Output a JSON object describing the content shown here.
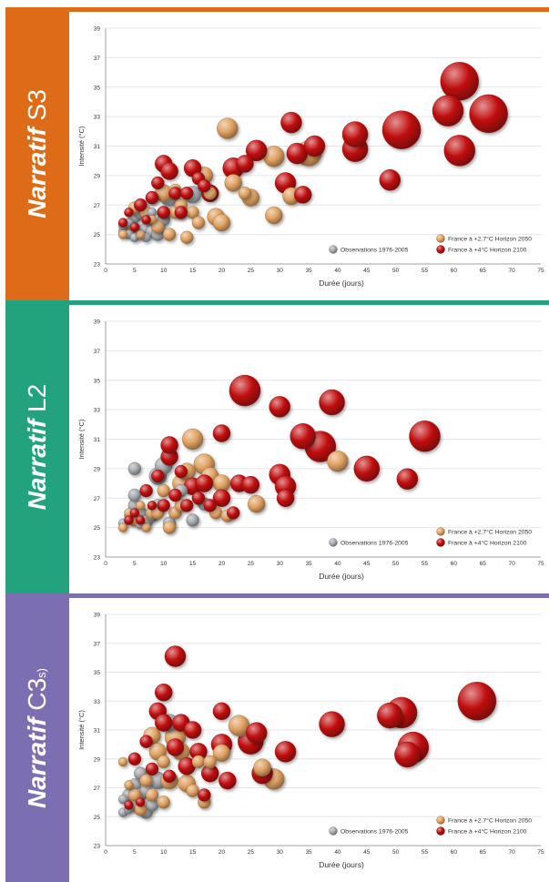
{
  "colors": {
    "s3": "#de6b17",
    "l2": "#23a37d",
    "c3": "#7b6fb1",
    "orange_bubble": "#e0a262",
    "red_bubble": "#c10f10",
    "grey_bubble": "#a5aab0"
  },
  "panels": [
    {
      "id": "s3",
      "prefix": "Narratif",
      "code": "S3",
      "suffix": ""
    },
    {
      "id": "l2",
      "prefix": "Narratif",
      "code": "L2",
      "suffix": ""
    },
    {
      "id": "c3",
      "prefix": "Narratif",
      "code": "C3",
      "suffix": "s)"
    }
  ],
  "chart_data": [
    {
      "type": "scatter",
      "xlabel": "Durée  (jours)",
      "ylabel": "Intensité  (°C)",
      "xlim": [
        0,
        75
      ],
      "ylim": [
        23,
        39
      ],
      "xticks": [
        0,
        5,
        10,
        15,
        20,
        25,
        30,
        35,
        40,
        45,
        50,
        55,
        60,
        65,
        70,
        75
      ],
      "yticks": [
        23,
        25,
        27,
        29,
        31,
        33,
        35,
        37,
        39
      ],
      "legend": "bottom-right",
      "series": [
        {
          "name": "Observations 1976-2005",
          "color": "#a5aab0",
          "x": [
            3,
            3,
            4,
            4,
            5,
            5,
            5,
            6,
            6,
            6,
            7,
            7,
            7,
            8,
            8,
            9,
            9,
            10,
            11,
            13,
            15
          ],
          "y": [
            25.2,
            25.6,
            25.0,
            25.8,
            24.8,
            26.2,
            25.4,
            26.5,
            25.0,
            27.0,
            25.4,
            26.0,
            24.8,
            25.2,
            26.5,
            25.0,
            25.6,
            26.0,
            27.5,
            26.5,
            27.7
          ],
          "d": [
            1,
            1,
            1,
            1,
            1,
            2,
            2,
            2,
            1,
            2,
            2,
            1,
            1,
            2,
            1,
            2,
            2,
            2,
            3,
            2,
            3
          ]
        },
        {
          "name": "France à +2.7°C Horizon 2050",
          "color": "#e0a262",
          "x": [
            3,
            4,
            5,
            6,
            7,
            8,
            8,
            9,
            10,
            10,
            11,
            12,
            12,
            13,
            14,
            15,
            16,
            17,
            18,
            19,
            20,
            21,
            22,
            24,
            25,
            29,
            29,
            32,
            35
          ],
          "y": [
            25.0,
            25.5,
            26.8,
            25.0,
            26.5,
            26.0,
            27.5,
            25.5,
            26.5,
            27.8,
            25.0,
            26.5,
            28.0,
            27.0,
            24.8,
            26.5,
            25.8,
            29.0,
            27.8,
            26.2,
            25.8,
            32.2,
            28.5,
            27.8,
            27.5,
            30.3,
            26.3,
            27.6,
            30.5
          ],
          "d": [
            1,
            2,
            2,
            1,
            2,
            1,
            2,
            2,
            2,
            3,
            2,
            2,
            2,
            2,
            2,
            2,
            2,
            3,
            2,
            3,
            3,
            4,
            3,
            2,
            3,
            4,
            3,
            3,
            5
          ]
        },
        {
          "name": "France à +4°C Horizon 2100",
          "color": "#c10f10",
          "x": [
            3,
            4,
            5,
            6,
            7,
            8,
            9,
            10,
            10,
            11,
            12,
            13,
            14,
            15,
            16,
            17,
            18,
            22,
            24,
            26,
            31,
            32,
            33,
            34,
            36,
            43,
            43,
            49,
            51,
            59,
            61,
            61,
            66
          ],
          "y": [
            25.8,
            26.5,
            25.5,
            27.0,
            26.0,
            27.5,
            28.5,
            26.5,
            29.8,
            29.3,
            27.8,
            26.5,
            27.8,
            29.5,
            28.8,
            28.3,
            27.8,
            29.5,
            29.8,
            30.7,
            28.5,
            32.6,
            30.5,
            27.7,
            31.0,
            30.8,
            31.8,
            28.7,
            32.1,
            33.4,
            30.7,
            35.4,
            33.2
          ],
          "d": [
            1,
            1,
            1,
            2,
            1,
            2,
            2,
            2,
            3,
            3,
            2,
            2,
            2,
            3,
            2,
            2,
            3,
            4,
            3,
            4,
            4,
            4,
            4,
            3,
            4,
            5,
            5,
            4,
            7,
            6,
            6,
            7,
            7
          ]
        }
      ],
      "legend_series": [
        {
          "name": "Observations 1976-2005",
          "color": "#a5aab0"
        },
        {
          "name": "France à +2.7°C Horizon 2050",
          "color": "#e0a262"
        },
        {
          "name": "France à +4°C Horizon 2100",
          "color": "#c10f10"
        }
      ]
    },
    {
      "type": "scatter",
      "xlabel": "Durée  (jours)",
      "ylabel": "Intensité  (°C)",
      "xlim": [
        0,
        75
      ],
      "ylim": [
        23,
        39
      ],
      "xticks": [
        0,
        5,
        10,
        15,
        20,
        25,
        30,
        35,
        40,
        45,
        50,
        55,
        60,
        65,
        70,
        75
      ],
      "yticks": [
        23,
        25,
        27,
        29,
        31,
        33,
        35,
        37,
        39
      ],
      "legend": "bottom-right",
      "series": [
        {
          "name": "Observations 1976-2005",
          "color": "#a5aab0",
          "x": [
            3,
            4,
            5,
            5,
            5,
            6,
            6,
            7,
            8,
            9,
            9,
            10,
            11,
            13,
            15,
            17
          ],
          "y": [
            25.3,
            25.8,
            26.5,
            27.2,
            29.0,
            25.2,
            26.0,
            25.4,
            25.8,
            28.5,
            26.5,
            29.2,
            25.3,
            27.5,
            25.5,
            26.6
          ],
          "d": [
            1,
            1,
            2,
            2,
            2,
            1,
            2,
            2,
            2,
            3,
            2,
            3,
            2,
            2,
            2,
            2
          ]
        },
        {
          "name": "France à +2.7°C Horizon 2050",
          "color": "#e0a262",
          "x": [
            3,
            4,
            5,
            6,
            7,
            8,
            9,
            10,
            11,
            12,
            13,
            13,
            14,
            15,
            16,
            17,
            18,
            19,
            20,
            21,
            26,
            40
          ],
          "y": [
            25.0,
            26.0,
            25.5,
            26.5,
            25.0,
            26.0,
            26.0,
            27.5,
            25.0,
            26.0,
            28.0,
            26.5,
            28.8,
            31.0,
            27.0,
            29.3,
            28.5,
            26.0,
            28.0,
            25.8,
            26.6,
            29.5
          ],
          "d": [
            1,
            1,
            2,
            1,
            1,
            2,
            2,
            2,
            2,
            2,
            3,
            2,
            3,
            4,
            2,
            4,
            3,
            2,
            3,
            2,
            3,
            4
          ]
        },
        {
          "name": "France à +4°C Horizon 2100",
          "color": "#c10f10",
          "x": [
            4,
            5,
            6,
            7,
            8,
            9,
            10,
            11,
            11,
            12,
            13,
            14,
            15,
            16,
            17,
            18,
            20,
            20,
            22,
            23,
            24,
            25,
            30,
            30,
            31,
            31,
            34,
            37,
            39,
            45,
            52,
            55
          ],
          "y": [
            25.5,
            26.0,
            25.5,
            27.5,
            26.5,
            28.5,
            26.5,
            29.8,
            30.6,
            27.2,
            28.8,
            26.5,
            27.8,
            27.0,
            28.0,
            26.5,
            31.4,
            27.0,
            26.0,
            28.0,
            34.3,
            27.9,
            33.2,
            28.6,
            27.0,
            27.8,
            31.2,
            30.5,
            33.5,
            29.0,
            28.3,
            31.2
          ],
          "d": [
            1,
            1,
            1,
            2,
            1,
            2,
            2,
            3,
            3,
            2,
            2,
            2,
            3,
            2,
            3,
            2,
            3,
            3,
            2,
            3,
            6,
            3,
            4,
            4,
            3,
            4,
            5,
            6,
            5,
            5,
            4,
            6
          ]
        }
      ],
      "legend_series": [
        {
          "name": "Observations 1976-2005",
          "color": "#a5aab0"
        },
        {
          "name": "France à +2.7°C Horizon 2050",
          "color": "#e0a262"
        },
        {
          "name": "France à +4°C Horizon 2100",
          "color": "#c10f10"
        }
      ]
    },
    {
      "type": "scatter",
      "xlabel": "Durée  (jours)",
      "ylabel": "Intensité  (°C)",
      "xlim": [
        0,
        75
      ],
      "ylim": [
        23,
        39
      ],
      "xticks": [
        0,
        5,
        10,
        15,
        20,
        25,
        30,
        35,
        40,
        45,
        50,
        55,
        60,
        65,
        70,
        75
      ],
      "yticks": [
        23,
        25,
        27,
        29,
        31,
        33,
        35,
        37,
        39
      ],
      "legend": "bottom-right",
      "series": [
        {
          "name": "Observations 1976-2005",
          "color": "#a5aab0",
          "x": [
            3,
            3,
            4,
            4,
            5,
            5,
            6,
            6,
            7,
            7,
            8,
            9,
            11
          ],
          "y": [
            25.3,
            26.2,
            25.5,
            26.5,
            27.2,
            25.8,
            26.5,
            28.0,
            25.3,
            26.8,
            25.8,
            27.5,
            31.5
          ],
          "d": [
            1,
            1,
            1,
            2,
            2,
            2,
            2,
            2,
            2,
            2,
            2,
            3,
            3
          ]
        },
        {
          "name": "France à +2.7°C Horizon 2050",
          "color": "#e0a262",
          "x": [
            3,
            4,
            5,
            6,
            7,
            8,
            8,
            9,
            10,
            10,
            11,
            12,
            13,
            14,
            15,
            16,
            17,
            18,
            20,
            23,
            27,
            29
          ],
          "y": [
            28.8,
            27.2,
            26.5,
            25.5,
            27.5,
            26.5,
            30.6,
            29.5,
            26.0,
            28.8,
            27.5,
            30.5,
            29.5,
            27.3,
            26.8,
            28.8,
            26.0,
            28.8,
            29.4,
            31.3,
            28.4,
            27.6
          ],
          "d": [
            1,
            1,
            2,
            2,
            2,
            2,
            3,
            3,
            2,
            2,
            3,
            4,
            3,
            3,
            2,
            2,
            2,
            2,
            3,
            4,
            3,
            4
          ]
        },
        {
          "name": "France à +4°C Horizon 2100",
          "color": "#c10f10",
          "x": [
            4,
            5,
            6,
            7,
            8,
            9,
            10,
            10,
            11,
            12,
            12,
            13,
            14,
            15,
            16,
            17,
            18,
            20,
            20,
            21,
            25,
            26,
            27,
            31,
            39,
            49,
            51,
            52,
            53,
            64
          ],
          "y": [
            25.8,
            29.0,
            26.0,
            30.2,
            28.3,
            32.3,
            31.5,
            33.6,
            27.8,
            36.1,
            29.8,
            31.5,
            28.5,
            31.0,
            29.5,
            26.5,
            28.0,
            32.3,
            30.0,
            27.5,
            30.2,
            30.8,
            28.0,
            29.5,
            31.4,
            32.0,
            32.2,
            29.3,
            29.8,
            33.0
          ],
          "d": [
            1,
            2,
            1,
            2,
            2,
            3,
            3,
            3,
            2,
            4,
            3,
            3,
            3,
            3,
            3,
            2,
            3,
            3,
            4,
            3,
            5,
            4,
            4,
            4,
            5,
            5,
            6,
            5,
            6,
            7
          ]
        }
      ],
      "legend_series": [
        {
          "name": "Observations 1976-2005",
          "color": "#a5aab0"
        },
        {
          "name": "France à +2.7°C Horizon 2050",
          "color": "#e0a262"
        },
        {
          "name": "France à +4°C Horizon 2100",
          "color": "#c10f10"
        }
      ]
    }
  ]
}
